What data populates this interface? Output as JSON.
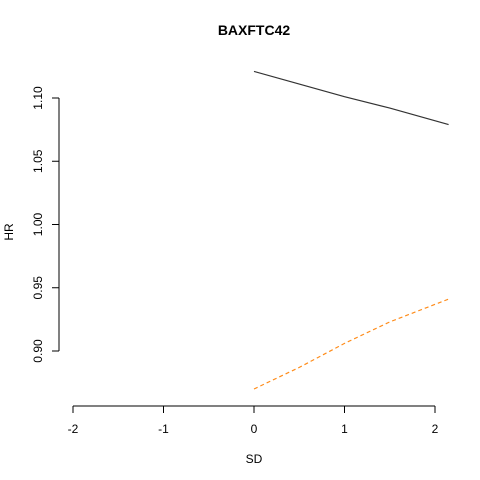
{
  "chart_data": {
    "type": "line",
    "title": "BAXFTC42",
    "xlabel": "SD",
    "ylabel": "HR",
    "xlim": [
      -2,
      2
    ],
    "ylim": [
      0.9,
      1.1
    ],
    "x_ticks": [
      "-2",
      "-1",
      "0",
      "1",
      "2"
    ],
    "y_ticks": [
      "0.90",
      "0.95",
      "1.00",
      "1.05",
      "1.10"
    ],
    "grid": false,
    "series": [
      {
        "style": "solid",
        "color": "#333333",
        "x": [
          0.0,
          0.5,
          1.0,
          1.5,
          2.15
        ],
        "y": [
          1.121,
          1.111,
          1.101,
          1.092,
          1.079
        ]
      },
      {
        "style": "dashed",
        "color": "#ff8c1a",
        "x": [
          0.0,
          0.5,
          1.0,
          1.5,
          2.15
        ],
        "y": [
          0.87,
          0.887,
          0.906,
          0.923,
          0.941
        ]
      }
    ]
  }
}
